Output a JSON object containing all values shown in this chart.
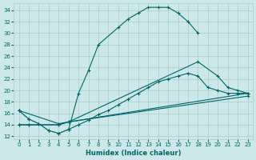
{
  "xlabel": "Humidex (Indice chaleur)",
  "background_color": "#cce8e8",
  "grid_color": "#aacccc",
  "line_color": "#006666",
  "xlim": [
    -0.5,
    23.5
  ],
  "ylim": [
    11.5,
    35.2
  ],
  "xticks": [
    0,
    1,
    2,
    3,
    4,
    5,
    6,
    7,
    8,
    9,
    10,
    11,
    12,
    13,
    14,
    15,
    16,
    17,
    18,
    19,
    20,
    21,
    22,
    23
  ],
  "yticks": [
    12,
    14,
    16,
    18,
    20,
    22,
    24,
    26,
    28,
    30,
    32,
    34
  ],
  "curve1_x": [
    0,
    1,
    2,
    3,
    4,
    5,
    6,
    7,
    8,
    10,
    11,
    12,
    13,
    14,
    15,
    16,
    17,
    18
  ],
  "curve1_y": [
    16.5,
    15.0,
    14.2,
    13.0,
    12.5,
    13.2,
    19.5,
    23.5,
    28.0,
    31.0,
    32.5,
    33.5,
    34.5,
    34.5,
    34.5,
    33.5,
    32.0,
    30.0
  ],
  "curve2_x": [
    0,
    1,
    2,
    3,
    4,
    5,
    6,
    7,
    8,
    9,
    10,
    11,
    12,
    13,
    14,
    15,
    16,
    17,
    18,
    19,
    20,
    21,
    22,
    23
  ],
  "curve2_y": [
    16.5,
    15.0,
    14.2,
    13.0,
    12.5,
    13.2,
    14.0,
    14.8,
    15.8,
    16.5,
    17.5,
    18.5,
    19.5,
    20.5,
    21.5,
    22.0,
    22.5,
    23.0,
    22.5,
    20.5,
    20.0,
    19.5,
    19.5,
    19.5
  ],
  "curve3_x": [
    0,
    4,
    5,
    18,
    20,
    21,
    22,
    23
  ],
  "curve3_y": [
    16.5,
    14.2,
    14.5,
    25.0,
    22.5,
    20.5,
    20.0,
    19.5
  ],
  "curve4_x": [
    0,
    1,
    4,
    5,
    23
  ],
  "curve4_y": [
    14.0,
    14.0,
    14.0,
    14.5,
    19.5
  ],
  "curve5_x": [
    0,
    1,
    4,
    5,
    23
  ],
  "curve5_y": [
    14.0,
    14.0,
    14.0,
    14.5,
    19.0
  ],
  "marker": "+",
  "markersize": 3,
  "linewidth": 0.8
}
